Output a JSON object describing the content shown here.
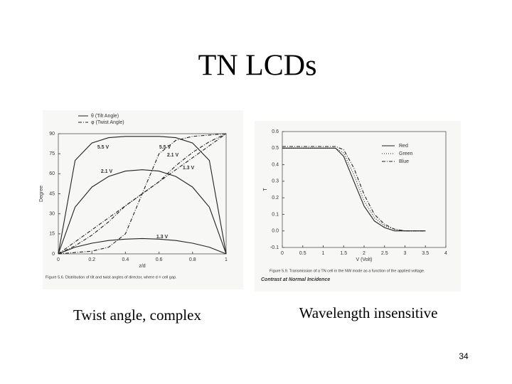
{
  "title": "TN LCDs",
  "chart_data": [
    {
      "type": "line",
      "x_label": "z/d",
      "y_label": "Degree",
      "caption": "Figure 5.6. Distribution of tilt and twist angles of director, where d = cell gap.",
      "legend": [
        {
          "label": "θ (Tilt Angle)",
          "dash": "solid"
        },
        {
          "label": "φ (Twist Angle)",
          "dash": "dash-dot"
        }
      ],
      "legend_position": "top-left-outside",
      "x": [
        0,
        0.1,
        0.2,
        0.3,
        0.4,
        0.5,
        0.6,
        0.7,
        0.8,
        0.9,
        1
      ],
      "series": [
        {
          "color": "#222222",
          "dash": "solid",
          "values": [
            0,
            70,
            83,
            87,
            88,
            88,
            88,
            87,
            83,
            70,
            0
          ]
        },
        {
          "color": "#222222",
          "dash": "solid",
          "values": [
            0,
            35,
            50,
            58,
            62,
            63,
            62,
            58,
            50,
            35,
            0
          ]
        },
        {
          "color": "#222222",
          "dash": "solid",
          "values": [
            0,
            5,
            8,
            10,
            11,
            11.5,
            11,
            10,
            8,
            5,
            0
          ]
        },
        {
          "color": "#222222",
          "dash": "dash-dot",
          "values": [
            0,
            1,
            2,
            5,
            15,
            45,
            75,
            85,
            88,
            89,
            90
          ]
        },
        {
          "color": "#222222",
          "dash": "dash-dot",
          "values": [
            0,
            6,
            14,
            24,
            36,
            45,
            54,
            66,
            76,
            84,
            90
          ]
        },
        {
          "color": "#222222",
          "dash": "dash-dot",
          "values": [
            0,
            9,
            18,
            27,
            36,
            45,
            54,
            63,
            72,
            81,
            90
          ]
        }
      ],
      "annotations": [
        "5.5 V",
        "5.5 V",
        "2.1 V",
        "2.1 V",
        "1.3 V",
        "1.3 V"
      ],
      "xlim": [
        0,
        1
      ],
      "xticks": [
        0,
        0.2,
        0.4,
        0.6,
        0.8,
        1
      ],
      "ylim": [
        0,
        90
      ],
      "yticks": [
        0,
        15,
        30,
        45,
        60,
        75,
        90
      ]
    },
    {
      "type": "line",
      "x_label": "V (Volt)",
      "y_label": "T",
      "caption": "Figure 5.9. Transmission of a TN cell in the NW mode as a function of the applied voltage.",
      "subtitle": "Contrast at Normal Incidence",
      "legend_position": "top-right",
      "x": [
        0,
        0.5,
        1,
        1.3,
        1.5,
        1.75,
        2,
        2.25,
        2.5,
        2.75,
        3,
        3.5
      ],
      "series": [
        {
          "name": "Red",
          "color": "#222222",
          "dash": "solid",
          "values": [
            0.5,
            0.5,
            0.5,
            0.5,
            0.45,
            0.3,
            0.15,
            0.06,
            0.02,
            0,
            0,
            0
          ]
        },
        {
          "name": "Green",
          "color": "#222222",
          "dash": "dotted",
          "values": [
            0.5,
            0.5,
            0.5,
            0.5,
            0.47,
            0.34,
            0.18,
            0.08,
            0.03,
            0.01,
            0,
            0
          ]
        },
        {
          "name": "Blue",
          "color": "#222222",
          "dash": "dash-dot",
          "values": [
            0.51,
            0.51,
            0.51,
            0.51,
            0.49,
            0.38,
            0.22,
            0.1,
            0.04,
            0.01,
            0,
            0
          ]
        }
      ],
      "xlim": [
        0,
        4
      ],
      "xticks": [
        0,
        0.5,
        1,
        1.5,
        2,
        2.5,
        3,
        3.5,
        4
      ],
      "ylim": [
        -0.1,
        0.6
      ],
      "yticks": [
        -0.1,
        {
          "value": 0,
          "label": "0.0"
        },
        0.1,
        0.2,
        0.3,
        0.4,
        0.5,
        0.6
      ]
    }
  ],
  "captions": [
    "Twist angle, complex",
    "Wavelength insensitive"
  ],
  "page_number": "34"
}
